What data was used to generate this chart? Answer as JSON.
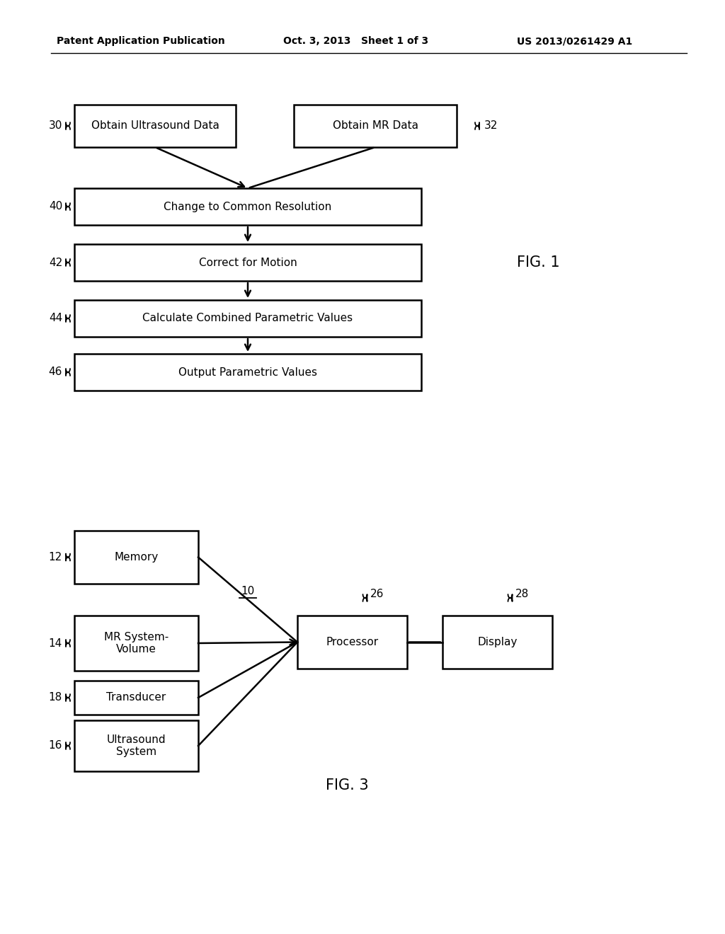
{
  "bg_color": "#ffffff",
  "header_left": "Patent Application Publication",
  "header_center": "Oct. 3, 2013   Sheet 1 of 3",
  "header_right": "US 2013/0261429 A1",
  "fig1_title": "FIG. 1",
  "fig3_title": "FIG. 3",
  "figsize": [
    10.24,
    13.2
  ],
  "dpi": 100
}
